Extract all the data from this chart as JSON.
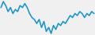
{
  "values": [
    6,
    9,
    7,
    4,
    6,
    3,
    5,
    4,
    7,
    6,
    8,
    6,
    3,
    1,
    0,
    -2,
    0,
    -4,
    -1,
    -6,
    -4,
    -7,
    -3,
    -5,
    -2,
    -3,
    -1,
    -2,
    0,
    2,
    1,
    3,
    2,
    4,
    3,
    1,
    3,
    2,
    4,
    3
  ],
  "line_color": "#2196c8",
  "bg_color": "#f0f0f0",
  "linewidth": 1.2
}
